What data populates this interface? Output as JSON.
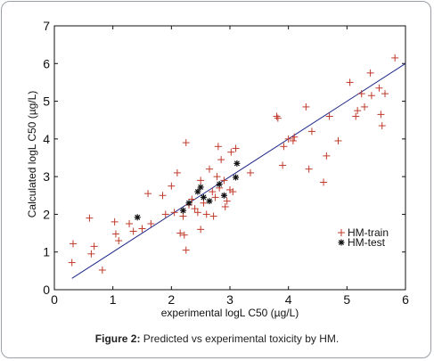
{
  "caption": {
    "label": "Figure 2:",
    "text": "Predicted vs experimental toxicity by HM."
  },
  "colors": {
    "train": "#c0392b",
    "test": "#111111",
    "fit_line": "#1f2a8a",
    "axes": "#111111"
  },
  "chart_data": {
    "type": "scatter",
    "xlabel": "experimental logL C50 (µg/L)",
    "ylabel": "Calculated logL C50 (µg/L)",
    "xlim": [
      0,
      6
    ],
    "ylim": [
      0,
      7
    ],
    "x_ticks": [
      "0",
      "1",
      "2",
      "3",
      "4",
      "5",
      "6"
    ],
    "y_ticks": [
      "0",
      "1",
      "2",
      "3",
      "4",
      "5",
      "6",
      "7"
    ],
    "grid": false,
    "legend_position": "bottom-right",
    "fit_line": {
      "x": [
        0.3,
        6.0
      ],
      "y": [
        0.3,
        6.0
      ]
    },
    "series": [
      {
        "name": "HM-train",
        "marker": "plus",
        "points": [
          [
            0.3,
            0.72
          ],
          [
            0.32,
            1.22
          ],
          [
            0.6,
            1.9
          ],
          [
            0.63,
            0.95
          ],
          [
            0.68,
            1.15
          ],
          [
            0.82,
            0.52
          ],
          [
            1.03,
            1.8
          ],
          [
            1.05,
            1.48
          ],
          [
            1.1,
            1.3
          ],
          [
            1.28,
            1.75
          ],
          [
            1.35,
            1.55
          ],
          [
            1.5,
            1.62
          ],
          [
            1.6,
            2.55
          ],
          [
            1.65,
            1.75
          ],
          [
            1.85,
            2.5
          ],
          [
            1.9,
            2.0
          ],
          [
            2.0,
            2.75
          ],
          [
            2.05,
            2.05
          ],
          [
            2.1,
            3.1
          ],
          [
            2.15,
            1.5
          ],
          [
            2.2,
            1.95
          ],
          [
            2.22,
            1.45
          ],
          [
            2.25,
            3.9
          ],
          [
            2.25,
            1.05
          ],
          [
            2.3,
            2.25
          ],
          [
            2.35,
            2.4
          ],
          [
            2.4,
            2.15
          ],
          [
            2.45,
            2.05
          ],
          [
            2.5,
            1.6
          ],
          [
            2.5,
            2.9
          ],
          [
            2.55,
            2.3
          ],
          [
            2.6,
            2.0
          ],
          [
            2.65,
            3.2
          ],
          [
            2.7,
            2.6
          ],
          [
            2.72,
            1.95
          ],
          [
            2.75,
            2.45
          ],
          [
            2.78,
            3.0
          ],
          [
            2.8,
            3.8
          ],
          [
            2.82,
            2.7
          ],
          [
            2.85,
            3.45
          ],
          [
            2.9,
            2.9
          ],
          [
            2.92,
            2.2
          ],
          [
            2.95,
            2.35
          ],
          [
            3.0,
            2.65
          ],
          [
            3.02,
            3.65
          ],
          [
            3.05,
            2.6
          ],
          [
            3.1,
            3.75
          ],
          [
            3.35,
            3.1
          ],
          [
            3.8,
            4.6
          ],
          [
            3.82,
            4.55
          ],
          [
            3.9,
            3.3
          ],
          [
            3.92,
            3.8
          ],
          [
            4.0,
            4.0
          ],
          [
            4.08,
            3.95
          ],
          [
            4.1,
            4.05
          ],
          [
            4.3,
            4.85
          ],
          [
            4.35,
            3.2
          ],
          [
            4.4,
            4.2
          ],
          [
            4.6,
            2.85
          ],
          [
            4.65,
            3.55
          ],
          [
            4.7,
            4.6
          ],
          [
            4.85,
            3.95
          ],
          [
            5.05,
            5.5
          ],
          [
            5.15,
            4.6
          ],
          [
            5.18,
            4.75
          ],
          [
            5.25,
            5.2
          ],
          [
            5.3,
            4.85
          ],
          [
            5.4,
            5.75
          ],
          [
            5.42,
            5.15
          ],
          [
            5.55,
            5.35
          ],
          [
            5.58,
            4.65
          ],
          [
            5.6,
            4.35
          ],
          [
            5.65,
            5.2
          ],
          [
            5.82,
            6.15
          ]
        ]
      },
      {
        "name": "HM-test",
        "marker": "star",
        "points": [
          [
            1.42,
            1.92
          ],
          [
            2.2,
            2.1
          ],
          [
            2.3,
            2.3
          ],
          [
            2.45,
            2.6
          ],
          [
            2.5,
            2.72
          ],
          [
            2.55,
            2.45
          ],
          [
            2.65,
            2.35
          ],
          [
            2.82,
            2.8
          ],
          [
            2.9,
            2.5
          ],
          [
            3.12,
            3.35
          ],
          [
            3.1,
            2.98
          ]
        ]
      }
    ]
  }
}
